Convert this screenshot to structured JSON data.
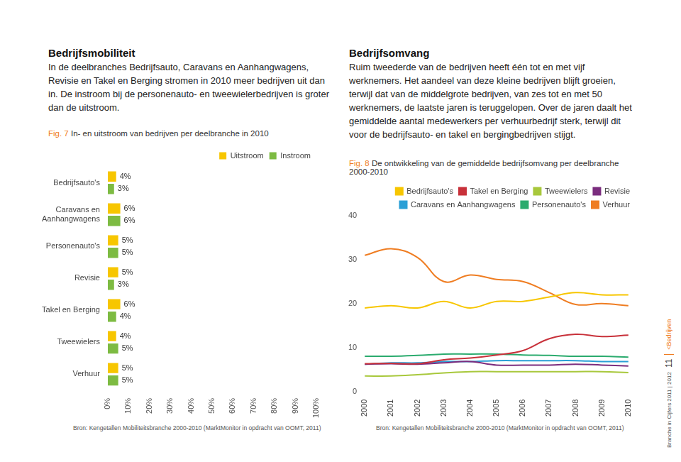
{
  "document": {
    "left": {
      "heading": "Bedrijfsmobiliteit",
      "text": "In de deelbranches Bedrijfsauto, Caravans en Aanhangwagens, Revisie en Takel en Berging stromen in 2010 meer bedrijven uit dan in. De instroom bij de personenauto- en tweewielerbedrijven is groter dan de uitstroom."
    },
    "right": {
      "heading": "Bedrijfsomvang",
      "text": "Ruim tweederde van de bedrijven heeft één tot en met vijf werknemers. Het aandeel van deze kleine bedrijven blijft groeien, terwijl dat van de middelgrote bedrijven, van zes tot en met 50 werknemers, de laatste jaren is teruggelopen. Over de jaren daalt het gemiddelde aantal medewerkers per verhuurbedrijf sterk, terwijl dit voor de bedrijfsauto- en takel en bergingbedrijven stijgt."
    },
    "figures": [
      {
        "label": "Fig. 7",
        "source": "Bron: Kengetallen Mobiliteitsbranche 2000-2010 (MarktMonitor in opdracht van OOMT, 2011)"
      },
      {
        "label": "Fig. 8",
        "source": "Bron: Kengetallen Mobiliteitsbranche 2000-2010 (MarktMonitor in opdracht van OOMT, 2011)"
      }
    ],
    "sidebar": {
      "publication": "Branche in Cijfers 2011 | 2012",
      "page": "11",
      "section": "<Bedrijven"
    }
  },
  "chart_data": [
    {
      "type": "bar",
      "orientation": "horizontal",
      "title": "In- en uitstroom van bedrijven per deelbranche in 2010",
      "categories": [
        "Bedrijfsauto's",
        [
          "Caravans en",
          "Aanhangwagens"
        ],
        "Personenauto's",
        "Revisie",
        "Takel en Berging",
        "Tweewielers",
        "Verhuur"
      ],
      "series": [
        {
          "name": "Uitstroom",
          "color": "#f7c600",
          "values": [
            4,
            6,
            5,
            5,
            6,
            4,
            5
          ],
          "value_labels": [
            "4%",
            "6%",
            "5%",
            "5%",
            "6%",
            "4%",
            "5%"
          ]
        },
        {
          "name": "Instroom",
          "color": "#7dbb42",
          "values": [
            3,
            6,
            5,
            3,
            4,
            5,
            5
          ],
          "value_labels": [
            "3%",
            "6%",
            "5%",
            "3%",
            "4%",
            "5%",
            "5%"
          ]
        }
      ],
      "xlim": [
        0,
        100
      ],
      "xticks": [
        {
          "value": 0,
          "label": "0%"
        },
        {
          "value": 10,
          "label": "10%"
        },
        {
          "value": 20,
          "label": "20%"
        },
        {
          "value": 30,
          "label": "30%"
        },
        {
          "value": 40,
          "label": "40%"
        },
        {
          "value": 50,
          "label": "50%"
        },
        {
          "value": 60,
          "label": "60%"
        },
        {
          "value": 70,
          "label": "70%"
        },
        {
          "value": 80,
          "label": "80%"
        },
        {
          "value": 90,
          "label": "90%"
        },
        {
          "value": 100,
          "label": "100%"
        }
      ],
      "data_labels": true,
      "grid": false,
      "legend": "top right"
    },
    {
      "type": "line",
      "title": "De ontwikkeling van de gemiddelde bedrijfsomvang per deelbranche 2000-2010",
      "categories": [
        "2000",
        "2001",
        "2002",
        "2003",
        "2004",
        "2005",
        "2006",
        "2007",
        "2008",
        "2009",
        "2010"
      ],
      "series": [
        {
          "name": "Bedrijfsauto's",
          "color": "#f7c600",
          "values": [
            19,
            19.5,
            19,
            20.5,
            19,
            20.5,
            20.5,
            21.5,
            22.5,
            22,
            22
          ]
        },
        {
          "name": "Takel en Berging",
          "color": "#c8313a",
          "values": [
            6.3,
            6.4,
            6.3,
            7.2,
            7.6,
            8.3,
            9.3,
            12,
            13,
            12.5,
            12.8
          ]
        },
        {
          "name": "Tweewielers",
          "color": "#a8c83c",
          "values": [
            3.5,
            3.5,
            3.8,
            4.2,
            4.5,
            4.5,
            4.5,
            4.5,
            4.5,
            4.5,
            4.3
          ]
        },
        {
          "name": "Revisie",
          "color": "#7b2d7e",
          "values": [
            6.2,
            6.3,
            6.2,
            6.5,
            6.8,
            6,
            6,
            6,
            6.2,
            6,
            5.8
          ]
        },
        {
          "name": "Caravans en Aanhangwagens",
          "color": "#2a9fd6",
          "values": [
            6.2,
            6.5,
            6.5,
            6.8,
            6.8,
            7,
            7,
            7,
            7,
            6.8,
            6.8
          ]
        },
        {
          "name": "Personenauto's",
          "color": "#2bab6e",
          "values": [
            8,
            8,
            8.2,
            8.5,
            8.5,
            8.5,
            8.3,
            8.2,
            8,
            8,
            7.8
          ]
        },
        {
          "name": "Verhuur",
          "color": "#ef7d22",
          "values": [
            31,
            32.5,
            30.5,
            25,
            26.5,
            25.5,
            25,
            22.5,
            19.8,
            20,
            19.5
          ]
        }
      ],
      "ylim": [
        0,
        40
      ],
      "yticks": [
        0,
        10,
        20,
        30,
        40
      ],
      "grid": false,
      "legend": "top right"
    }
  ]
}
